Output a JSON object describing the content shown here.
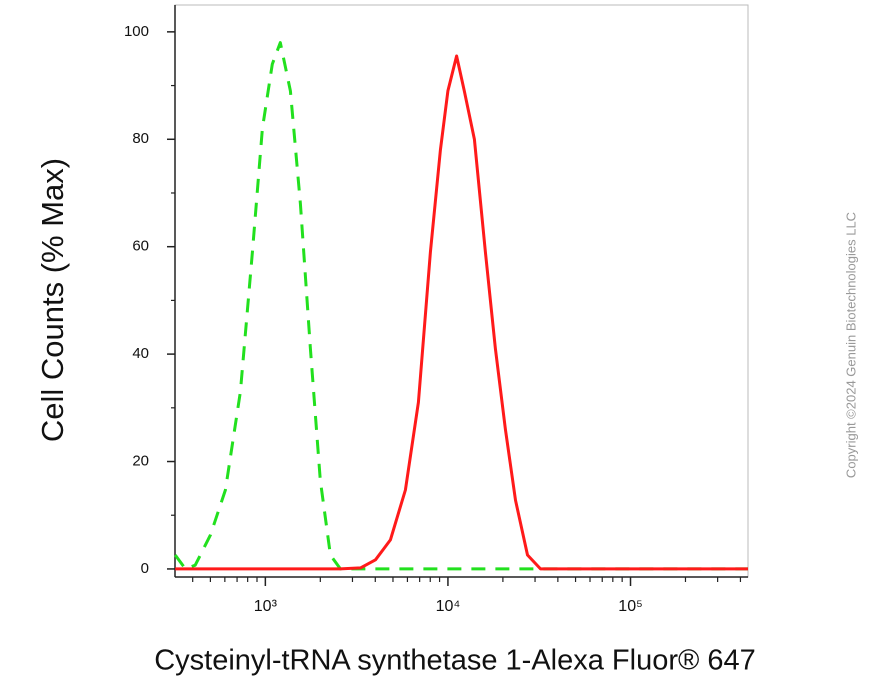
{
  "chart_data": {
    "type": "line",
    "xlabel": "Cysteinyl-tRNA synthetase 1-Alexa Fluor® 647",
    "ylabel": "Cell Counts (% Max)",
    "watermark": "Copyright ©2024 Genuin Biotechnologies LLC",
    "xscale": "log",
    "xlim": [
      320,
      440000
    ],
    "ylim": [
      -1.5,
      105
    ],
    "xticks": [
      {
        "value": 1000,
        "label": "10³"
      },
      {
        "value": 10000,
        "label": "10⁴"
      },
      {
        "value": 100000,
        "label": "10⁵"
      }
    ],
    "xminorticks": [
      400,
      500,
      600,
      700,
      800,
      900,
      2000,
      3000,
      4000,
      5000,
      6000,
      7000,
      8000,
      9000,
      20000,
      30000,
      40000,
      50000,
      60000,
      70000,
      80000,
      90000,
      200000,
      300000,
      400000
    ],
    "yticks": [
      0,
      20,
      40,
      60,
      80,
      100
    ],
    "yminorticks": [
      10,
      30,
      50,
      70,
      90
    ],
    "series": [
      {
        "color": "#22e01e",
        "dashed": true,
        "x": [
          321,
          365,
          413,
          500,
          604,
          730,
          849,
          963,
          1092,
          1208,
          1371,
          1556,
          1766,
          2000,
          2270,
          2576,
          440000
        ],
        "values": [
          2.6,
          0,
          0.7,
          6.3,
          14.7,
          33,
          59,
          82,
          94,
          98,
          89,
          68,
          41,
          16.5,
          2.6,
          0,
          0
        ]
      },
      {
        "color": "#ff1a1a",
        "dashed": false,
        "x": [
          321,
          2576,
          3320,
          4010,
          4840,
          5850,
          6890,
          8020,
          9090,
          10000,
          11150,
          12300,
          13960,
          16030,
          18200,
          20650,
          23450,
          27290,
          32140,
          440000
        ],
        "values": [
          0,
          0,
          0.2,
          1.7,
          5.4,
          14.7,
          31,
          59,
          78,
          89,
          95.5,
          89,
          80,
          59,
          41,
          26,
          12.8,
          2.6,
          0,
          0
        ]
      }
    ]
  }
}
